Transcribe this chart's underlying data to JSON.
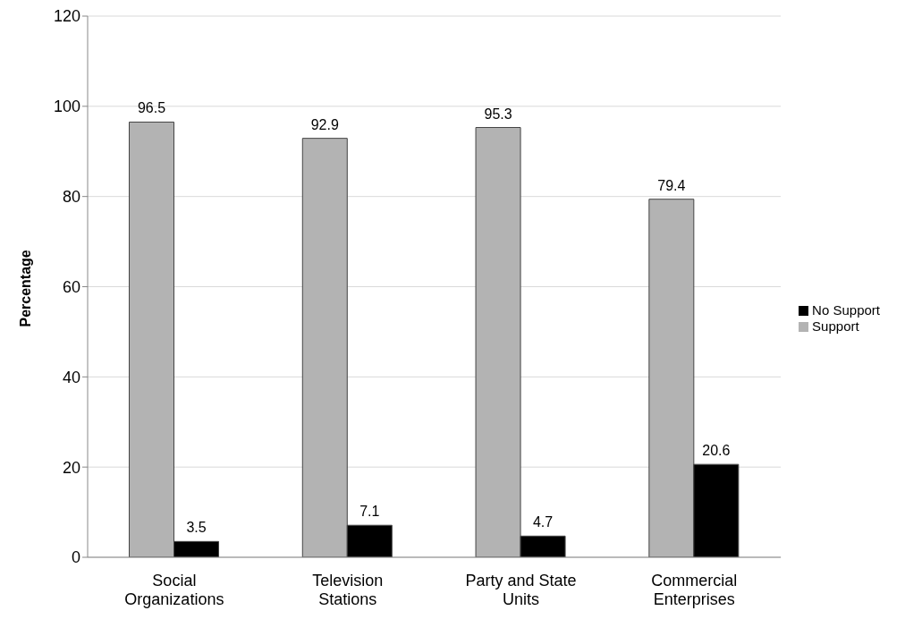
{
  "chart_data": {
    "type": "bar",
    "ylabel": "Percentage",
    "categories": [
      "Social Organizations",
      "Television Stations",
      "Party and State Units",
      "Commercial Enterprises"
    ],
    "series": [
      {
        "name": "Support",
        "color": "#b3b3b3",
        "values": [
          96.5,
          92.9,
          95.3,
          79.4
        ]
      },
      {
        "name": "No Support",
        "color": "#000000",
        "values": [
          3.5,
          7.1,
          4.7,
          20.6
        ]
      }
    ],
    "ylim": [
      0,
      120
    ],
    "yticks": [
      0,
      20,
      40,
      60,
      80,
      100,
      120
    ],
    "grid": "y",
    "legend": "right",
    "data_labels": true
  }
}
